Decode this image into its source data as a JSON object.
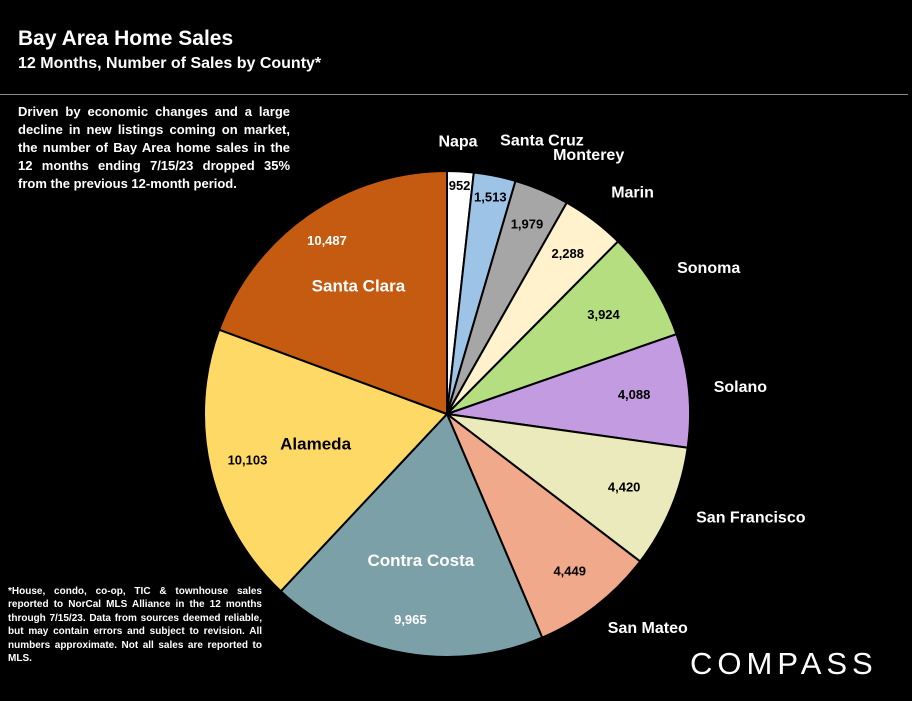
{
  "header": {
    "title": "Bay Area Home Sales",
    "subtitle": "12 Months, Number of Sales by County*"
  },
  "commentary": "Driven by economic changes and a large decline in new listings coming on market, the number of Bay Area home sales in the 12 months ending 7/15/23 dropped 35% from the previous 12-month period.",
  "footnote": "*House, condo, co-op, TIC & townhouse sales reported to NorCal MLS Alliance in the 12 months through 7/15/23. Data from sources deemed reliable, but may contain errors and subject to revision. All numbers approximate. Not all sales are reported to MLS.",
  "logo": {
    "text": "COMPASS"
  },
  "chart_data": {
    "type": "pie",
    "title": "Bay Area Home Sales",
    "subtitle": "12 Months, Number of Sales by County*",
    "start": "12 o'clock",
    "direction": "clockwise",
    "slices": [
      {
        "name": "Napa",
        "value": 952,
        "color": "#ffffff",
        "value_label": "952"
      },
      {
        "name": "Santa Cruz",
        "value": 1513,
        "color": "#9dc3e6",
        "value_label": "1,513"
      },
      {
        "name": "Monterey",
        "value": 1979,
        "color": "#a6a6a6",
        "value_label": "1,979"
      },
      {
        "name": "Marin",
        "value": 2288,
        "color": "#fff2cc",
        "value_label": "2,288"
      },
      {
        "name": "Sonoma",
        "value": 3924,
        "color": "#b4de7f",
        "value_label": "3,924"
      },
      {
        "name": "Solano",
        "value": 4088,
        "color": "#c39be0",
        "value_label": "4,088"
      },
      {
        "name": "San Francisco",
        "value": 4420,
        "color": "#eaeabd",
        "value_label": "4,420"
      },
      {
        "name": "San Mateo",
        "value": 4449,
        "color": "#f0a98a",
        "value_label": "4,449"
      },
      {
        "name": "Contra Costa",
        "value": 9965,
        "color": "#7ca0a8",
        "value_label": "9,965"
      },
      {
        "name": "Alameda",
        "value": 10103,
        "color": "#ffd966",
        "value_label": "10,103"
      },
      {
        "name": "Santa Clara",
        "value": 10487,
        "color": "#c55a11",
        "value_label": "10,487"
      }
    ]
  }
}
